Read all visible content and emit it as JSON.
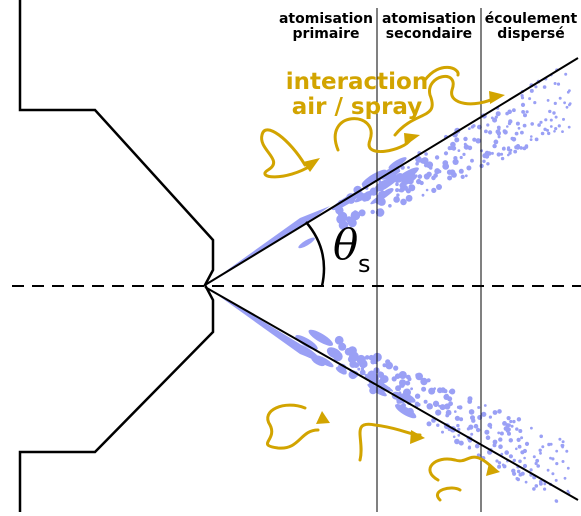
{
  "zones": [
    {
      "line1": "atomisation",
      "line2": "primaire"
    },
    {
      "line1": "atomisation",
      "line2": "secondaire"
    },
    {
      "line1": "écoulement",
      "line2": "dispersé"
    }
  ],
  "interaction": {
    "line1": "interaction",
    "line2": "air / spray"
  },
  "angle": {
    "symbol": "θ",
    "subscript": "s"
  },
  "colors": {
    "spray": "#9aa0f5",
    "air": "#d2a400",
    "lines": "#000000"
  }
}
